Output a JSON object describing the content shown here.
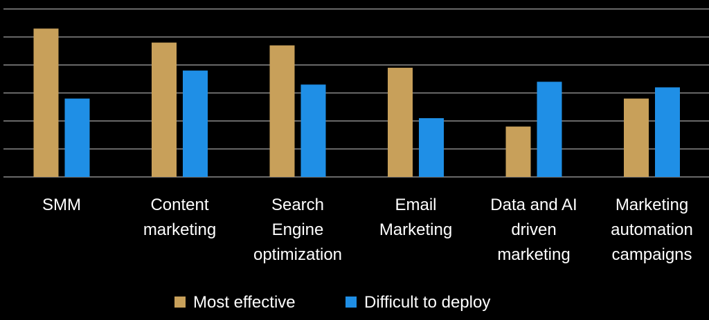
{
  "chart_data": {
    "type": "bar",
    "categories": [
      [
        "SMM"
      ],
      [
        "Content",
        "marketing"
      ],
      [
        "Search",
        "Engine",
        "optimization"
      ],
      [
        "Email",
        "Marketing"
      ],
      [
        "Data and AI",
        "driven",
        "marketing"
      ],
      [
        "Marketing",
        "automation",
        "campaigns"
      ]
    ],
    "series": [
      {
        "name": "Most effective",
        "color": "#c8a05a",
        "values": [
          5.3,
          4.8,
          4.7,
          3.9,
          1.8,
          2.8
        ]
      },
      {
        "name": "Difficult to deploy",
        "color": "#1f8fe6",
        "values": [
          2.8,
          3.8,
          3.3,
          2.1,
          3.4,
          3.2
        ]
      }
    ],
    "ylim": [
      0,
      6
    ],
    "grid": true,
    "legend": "bottom",
    "background": "#000000"
  }
}
